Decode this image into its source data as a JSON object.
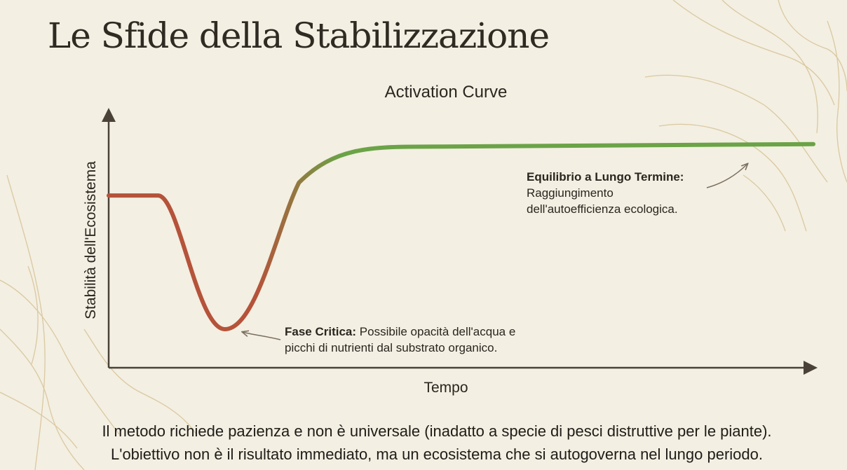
{
  "title": "Le Sfide della Stabilizzazione",
  "footer": {
    "line1": "Il metodo richiede pazienza e non è universale (inadatto a specie di pesci distruttive per le piante).",
    "line2": "L'obiettivo non è il risultato immediato, ma un ecosistema che si autogoverna nel lungo periodo."
  },
  "chart_data": {
    "type": "line",
    "title": "Activation Curve",
    "xlabel": "Tempo",
    "ylabel": "Stabilità dell'Ecosistema",
    "grid": false,
    "curve": [
      {
        "x": 0,
        "y": 0.67
      },
      {
        "x": 0.07,
        "y": 0.67
      },
      {
        "x": 0.165,
        "y": 0.15
      },
      {
        "x": 0.27,
        "y": 0.72
      },
      {
        "x": 0.45,
        "y": 0.86
      },
      {
        "x": 1.0,
        "y": 0.87
      }
    ],
    "colors": {
      "start": "#b5533a",
      "end": "#6ba347",
      "axis": "#4a4238"
    },
    "annotations": [
      {
        "label": "Fase Critica:",
        "text": "Possibile opacità dell'acqua e",
        "text2": "picchi di nutrienti dal substrato organico."
      },
      {
        "label": "Equilibrio a Lungo Termine:",
        "text": "Raggiungimento",
        "text2": "dell'autoefficienza ecologica."
      }
    ]
  }
}
